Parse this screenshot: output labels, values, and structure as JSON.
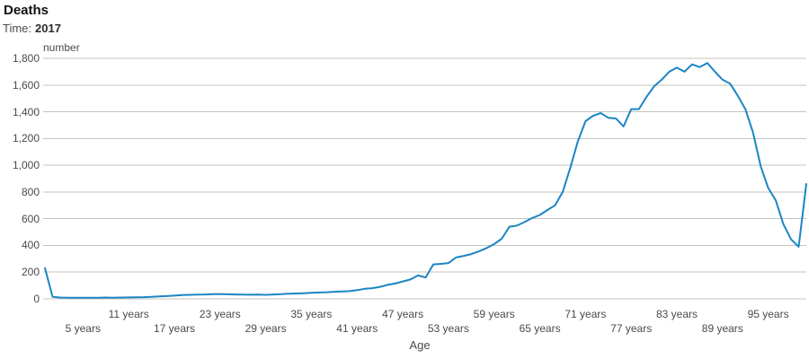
{
  "header": {
    "title": "Deaths",
    "time_label": "Time:",
    "time_value": "2017"
  },
  "chart_data": {
    "type": "line",
    "title": "Deaths",
    "time": "2017",
    "xlabel": "Age",
    "ylabel": "number",
    "ylim": [
      0,
      1800
    ],
    "ytick_interval": 200,
    "grid": true,
    "legend": "none",
    "line_color": "#1b86c3",
    "grid_color": "#c6c3ba",
    "yticks": [
      {
        "value": 0,
        "label": "0"
      },
      {
        "value": 200,
        "label": "200"
      },
      {
        "value": 400,
        "label": "400"
      },
      {
        "value": 600,
        "label": "600"
      },
      {
        "value": 800,
        "label": "800"
      },
      {
        "value": 1000,
        "label": "1,000"
      },
      {
        "value": 1200,
        "label": "1,200"
      },
      {
        "value": 1400,
        "label": "1,400"
      },
      {
        "value": 1600,
        "label": "1,600"
      },
      {
        "value": 1800,
        "label": "1,800"
      }
    ],
    "xticks_upper": [
      {
        "age": 11,
        "label": "11 years"
      },
      {
        "age": 23,
        "label": "23 years"
      },
      {
        "age": 35,
        "label": "35 years"
      },
      {
        "age": 47,
        "label": "47 years"
      },
      {
        "age": 59,
        "label": "59 years"
      },
      {
        "age": 71,
        "label": "71 years"
      },
      {
        "age": 83,
        "label": "83 years"
      },
      {
        "age": 95,
        "label": "95 years"
      }
    ],
    "xticks_lower": [
      {
        "age": 5,
        "label": "5 years"
      },
      {
        "age": 17,
        "label": "17 years"
      },
      {
        "age": 29,
        "label": "29 years"
      },
      {
        "age": 41,
        "label": "41 years"
      },
      {
        "age": 53,
        "label": "53 years"
      },
      {
        "age": 65,
        "label": "65 years"
      },
      {
        "age": 77,
        "label": "77 years"
      }
    ],
    "xtick_lower_last": {
      "age": 89,
      "label": "89 years"
    },
    "ages": [
      0,
      1,
      2,
      3,
      4,
      5,
      6,
      7,
      8,
      9,
      10,
      11,
      12,
      13,
      14,
      15,
      16,
      17,
      18,
      19,
      20,
      21,
      22,
      23,
      24,
      25,
      26,
      27,
      28,
      29,
      30,
      31,
      32,
      33,
      34,
      35,
      36,
      37,
      38,
      39,
      40,
      41,
      42,
      43,
      44,
      45,
      46,
      47,
      48,
      49,
      50,
      51,
      52,
      53,
      54,
      55,
      56,
      57,
      58,
      59,
      60,
      61,
      62,
      63,
      64,
      65,
      66,
      67,
      68,
      69,
      70,
      71,
      72,
      73,
      74,
      75,
      76,
      77,
      78,
      79,
      80,
      81,
      82,
      83,
      84,
      85,
      86,
      87,
      88,
      89,
      90,
      91,
      92,
      93,
      94,
      95,
      96,
      97,
      98,
      99,
      100
    ],
    "values": [
      230,
      15,
      10,
      9,
      8,
      8,
      9,
      8,
      10,
      9,
      10,
      11,
      12,
      13,
      15,
      18,
      21,
      24,
      28,
      30,
      32,
      33,
      35,
      36,
      34,
      33,
      32,
      31,
      32,
      30,
      33,
      35,
      38,
      40,
      42,
      45,
      48,
      50,
      53,
      55,
      58,
      65,
      75,
      80,
      90,
      105,
      115,
      130,
      145,
      175,
      160,
      258,
      262,
      268,
      310,
      322,
      335,
      355,
      380,
      410,
      450,
      540,
      548,
      575,
      605,
      628,
      665,
      700,
      800,
      980,
      1180,
      1330,
      1370,
      1390,
      1355,
      1350,
      1290,
      1420,
      1420,
      1510,
      1590,
      1640,
      1700,
      1730,
      1700,
      1755,
      1735,
      1765,
      1700,
      1640,
      1610,
      1520,
      1420,
      1245,
      995,
      830,
      736,
      557,
      445,
      390,
      860
    ]
  }
}
